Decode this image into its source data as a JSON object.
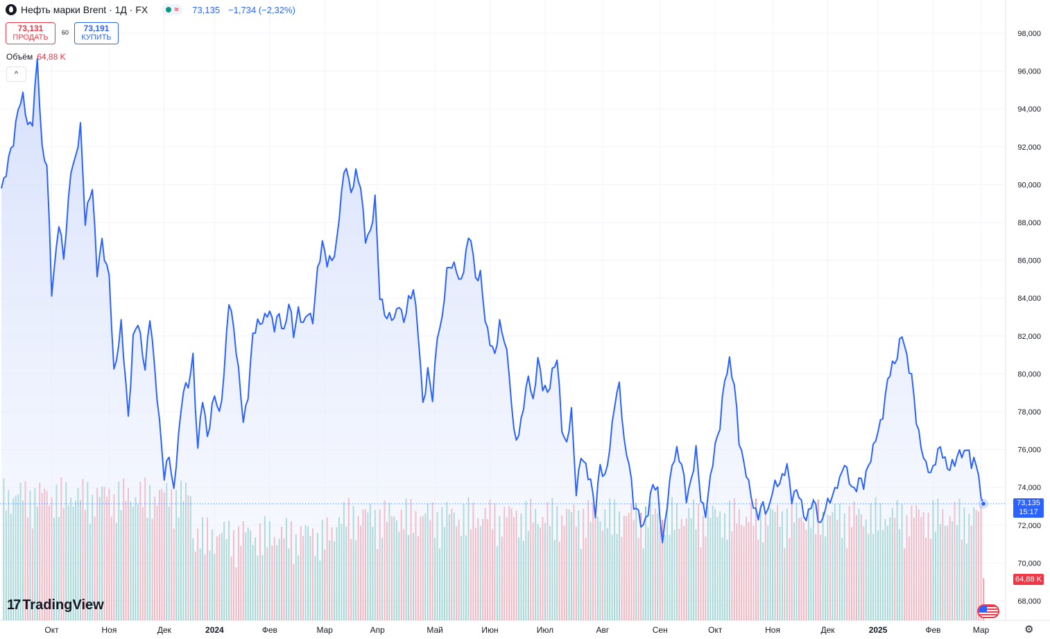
{
  "header": {
    "title": "Нефть марки Brent · 1Д · FX",
    "last_price": "73,135",
    "change": "−1,734 (−2,32%)"
  },
  "trade": {
    "sell_price": "73,131",
    "sell_label": "ПРОДАТЬ",
    "spread": "60",
    "buy_price": "73,191",
    "buy_label": "КУПИТЬ"
  },
  "volume_legend": {
    "label": "Объём",
    "value": "64,88 K"
  },
  "collapse_icon": "chevron-up-icon",
  "branding": {
    "name": "TradingView"
  },
  "price_tag": {
    "price": "73,135",
    "countdown": "15:17"
  },
  "volume_tag": "64,88 K",
  "colors": {
    "line": "#2962ff",
    "area_top": "#dbe4fd",
    "vol_up": "#089981",
    "vol_down": "#f23645",
    "axis_text": "#131722",
    "grid": "#f0f3fa"
  },
  "chart_data": {
    "type": "area",
    "y_axis_ticks": [
      "98,000",
      "96,000",
      "94,000",
      "92,000",
      "90,000",
      "88,000",
      "86,000",
      "84,000",
      "82,000",
      "80,000",
      "78,000",
      "76,000",
      "74,000",
      "72,000",
      "70,000",
      "68,000"
    ],
    "ylim": [
      67.2,
      98.4
    ],
    "x_axis_ticks": [
      "Окт",
      "Ноя",
      "Дек",
      "2024",
      "Фев",
      "Мар",
      "Апр",
      "Май",
      "Июн",
      "Июл",
      "Авг",
      "Сен",
      "Окт",
      "Ноя",
      "Дек",
      "2025",
      "Фев",
      "Мар"
    ],
    "x_tick_index": [
      21,
      45,
      68,
      89,
      112,
      135,
      157,
      181,
      204,
      227,
      251,
      275,
      298,
      322,
      345,
      366,
      389,
      409
    ],
    "bold_ticks": [
      "2024",
      "2025"
    ],
    "anchors": [
      [
        0,
        89.8
      ],
      [
        2,
        90.8
      ],
      [
        5,
        92.2
      ],
      [
        7,
        94.2
      ],
      [
        9,
        94.5
      ],
      [
        11,
        93.2
      ],
      [
        13,
        93.4
      ],
      [
        15,
        96.5
      ],
      [
        17,
        92.0
      ],
      [
        19,
        91.0
      ],
      [
        21,
        84.3
      ],
      [
        24,
        88.0
      ],
      [
        26,
        86.0
      ],
      [
        29,
        90.8
      ],
      [
        31,
        91.2
      ],
      [
        33,
        93.3
      ],
      [
        35,
        88.0
      ],
      [
        38,
        90.0
      ],
      [
        40,
        85.3
      ],
      [
        42,
        86.9
      ],
      [
        45,
        85.2
      ],
      [
        47,
        79.9
      ],
      [
        50,
        82.7
      ],
      [
        53,
        77.6
      ],
      [
        55,
        82.0
      ],
      [
        57,
        82.6
      ],
      [
        60,
        80.4
      ],
      [
        62,
        82.9
      ],
      [
        65,
        79.0
      ],
      [
        68,
        74.4
      ],
      [
        70,
        75.9
      ],
      [
        72,
        73.7
      ],
      [
        74,
        76.7
      ],
      [
        76,
        79.4
      ],
      [
        78,
        79.2
      ],
      [
        80,
        80.9
      ],
      [
        82,
        76.1
      ],
      [
        84,
        78.6
      ],
      [
        86,
        76.8
      ],
      [
        89,
        78.8
      ],
      [
        91,
        77.9
      ],
      [
        93,
        80.0
      ],
      [
        95,
        83.8
      ],
      [
        97,
        82.6
      ],
      [
        99,
        80.0
      ],
      [
        101,
        77.5
      ],
      [
        103,
        79.0
      ],
      [
        105,
        81.9
      ],
      [
        107,
        82.8
      ],
      [
        110,
        82.8
      ],
      [
        112,
        83.4
      ],
      [
        114,
        82.5
      ],
      [
        116,
        83.0
      ],
      [
        118,
        82.3
      ],
      [
        120,
        83.7
      ],
      [
        122,
        82.1
      ],
      [
        124,
        83.5
      ],
      [
        126,
        82.4
      ],
      [
        128,
        83.4
      ],
      [
        130,
        82.8
      ],
      [
        132,
        85.3
      ],
      [
        134,
        87.1
      ],
      [
        136,
        85.8
      ],
      [
        138,
        86.0
      ],
      [
        140,
        87.0
      ],
      [
        142,
        89.5
      ],
      [
        144,
        91.2
      ],
      [
        146,
        89.5
      ],
      [
        148,
        90.5
      ],
      [
        150,
        90.1
      ],
      [
        152,
        87.0
      ],
      [
        154,
        87.4
      ],
      [
        156,
        89.4
      ],
      [
        158,
        84.0
      ],
      [
        160,
        83.3
      ],
      [
        162,
        83.0
      ],
      [
        164,
        82.8
      ],
      [
        166,
        83.9
      ],
      [
        168,
        82.6
      ],
      [
        170,
        83.9
      ],
      [
        172,
        84.6
      ],
      [
        174,
        82.1
      ],
      [
        176,
        78.5
      ],
      [
        178,
        80.1
      ],
      [
        180,
        78.6
      ],
      [
        182,
        82.2
      ],
      [
        184,
        82.7
      ],
      [
        186,
        85.5
      ],
      [
        188,
        85.9
      ],
      [
        190,
        85.3
      ],
      [
        192,
        84.9
      ],
      [
        194,
        86.5
      ],
      [
        196,
        87.2
      ],
      [
        198,
        85.2
      ],
      [
        200,
        85.1
      ],
      [
        202,
        82.9
      ],
      [
        204,
        81.8
      ],
      [
        206,
        80.8
      ],
      [
        208,
        82.8
      ],
      [
        210,
        81.8
      ],
      [
        212,
        80.0
      ],
      [
        214,
        77.0
      ],
      [
        216,
        76.5
      ],
      [
        218,
        78.4
      ],
      [
        220,
        80.0
      ],
      [
        222,
        78.3
      ],
      [
        224,
        81.0
      ],
      [
        226,
        79.3
      ],
      [
        228,
        78.9
      ],
      [
        230,
        80.2
      ],
      [
        232,
        80.7
      ],
      [
        234,
        77.2
      ],
      [
        236,
        76.3
      ],
      [
        238,
        77.9
      ],
      [
        240,
        73.9
      ],
      [
        242,
        75.6
      ],
      [
        244,
        75.0
      ],
      [
        246,
        74.5
      ],
      [
        248,
        72.5
      ],
      [
        250,
        75.3
      ],
      [
        252,
        74.5
      ],
      [
        254,
        75.9
      ],
      [
        256,
        78.6
      ],
      [
        258,
        79.4
      ],
      [
        260,
        76.3
      ],
      [
        262,
        75.5
      ],
      [
        264,
        72.9
      ],
      [
        266,
        72.7
      ],
      [
        268,
        71.9
      ],
      [
        270,
        72.6
      ],
      [
        272,
        74.4
      ],
      [
        274,
        73.7
      ],
      [
        276,
        71.0
      ],
      [
        278,
        73.3
      ],
      [
        280,
        75.0
      ],
      [
        282,
        76.0
      ],
      [
        284,
        75.3
      ],
      [
        286,
        73.3
      ],
      [
        288,
        74.5
      ],
      [
        290,
        75.9
      ],
      [
        292,
        73.4
      ],
      [
        294,
        72.7
      ],
      [
        296,
        74.3
      ],
      [
        298,
        76.3
      ],
      [
        300,
        77.3
      ],
      [
        302,
        79.6
      ],
      [
        304,
        80.8
      ],
      [
        306,
        79.3
      ],
      [
        308,
        76.5
      ],
      [
        310,
        75.4
      ],
      [
        312,
        74.0
      ],
      [
        314,
        73.1
      ],
      [
        316,
        72.5
      ],
      [
        318,
        73.0
      ],
      [
        320,
        72.8
      ],
      [
        322,
        73.8
      ],
      [
        324,
        74.2
      ],
      [
        326,
        74.6
      ],
      [
        328,
        75.0
      ],
      [
        330,
        73.5
      ],
      [
        332,
        73.9
      ],
      [
        334,
        73.0
      ],
      [
        336,
        72.4
      ],
      [
        338,
        73.0
      ],
      [
        340,
        73.1
      ],
      [
        342,
        72.0
      ],
      [
        344,
        72.8
      ],
      [
        346,
        73.5
      ],
      [
        348,
        73.8
      ],
      [
        350,
        74.3
      ],
      [
        352,
        75.5
      ],
      [
        354,
        74.2
      ],
      [
        356,
        73.8
      ],
      [
        358,
        74.5
      ],
      [
        360,
        74.0
      ],
      [
        362,
        75.3
      ],
      [
        364,
        76.0
      ],
      [
        366,
        76.9
      ],
      [
        368,
        78.0
      ],
      [
        370,
        79.5
      ],
      [
        372,
        80.5
      ],
      [
        374,
        81.0
      ],
      [
        376,
        82.0
      ],
      [
        378,
        81.0
      ],
      [
        380,
        79.8
      ],
      [
        382,
        77.5
      ],
      [
        384,
        76.3
      ],
      [
        386,
        75.0
      ],
      [
        388,
        74.8
      ],
      [
        390,
        75.5
      ],
      [
        392,
        76.0
      ],
      [
        394,
        75.5
      ],
      [
        396,
        74.9
      ],
      [
        398,
        75.3
      ],
      [
        400,
        76.0
      ],
      [
        402,
        75.6
      ],
      [
        404,
        76.2
      ],
      [
        405,
        74.9
      ],
      [
        406,
        75.8
      ],
      [
        408,
        74.3
      ],
      [
        410,
        73.135
      ]
    ],
    "volume_ylim": [
      0,
      100000
    ],
    "last_price": 73.135,
    "last_volume": 64.88
  }
}
